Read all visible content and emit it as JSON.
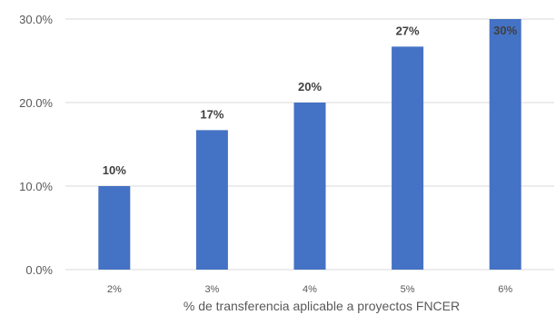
{
  "chart_data": {
    "type": "bar",
    "categories": [
      "2%",
      "3%",
      "4%",
      "5%",
      "6%"
    ],
    "values": [
      10,
      16.7,
      20,
      26.7,
      30
    ],
    "data_labels": [
      "10%",
      "17%",
      "20%",
      "27%",
      "30%"
    ],
    "y_ticks": [
      "0.0%",
      "10.0%",
      "20.0%",
      "30.0%"
    ],
    "ylim": [
      0,
      30
    ],
    "xlabel": "% de transferencia aplicable a proyectos FNCER",
    "ylabel": "",
    "grid": true,
    "bar_color": "#4472C4",
    "grid_color": "#d9d9d9"
  }
}
